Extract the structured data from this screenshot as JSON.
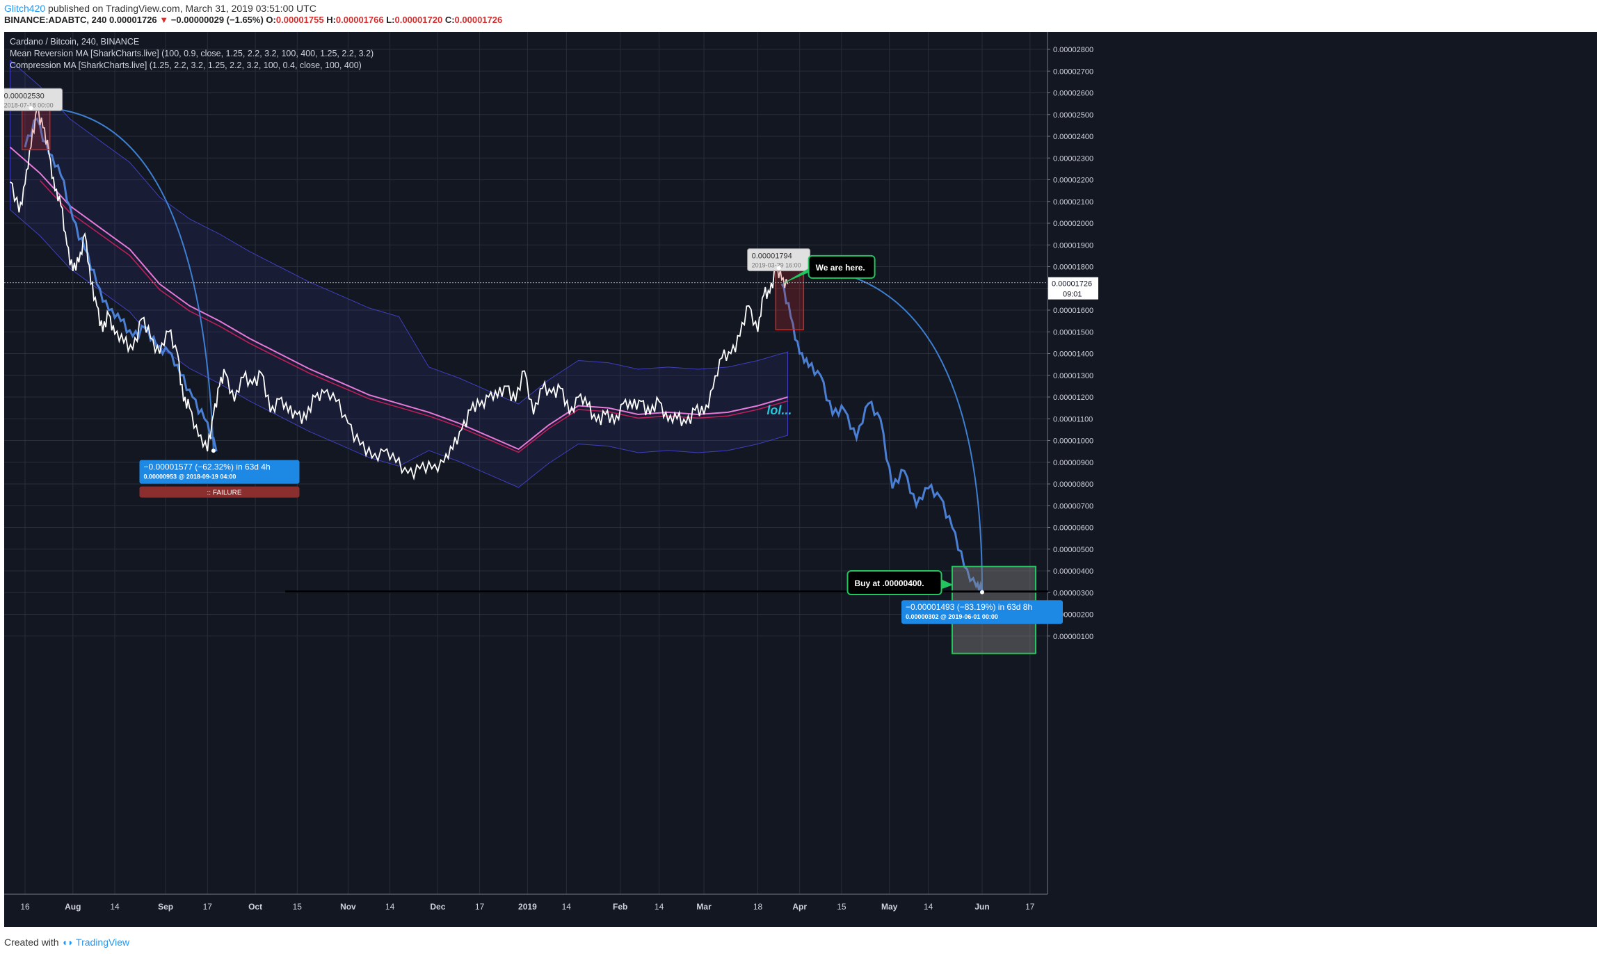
{
  "header": {
    "user": "Glitch420",
    "published": "published on TradingView.com, March 31, 2019 03:51:00 UTC",
    "symbol_line": {
      "symbol": "BINANCE:ADABTC, 240",
      "last": "0.00001726",
      "change": "−0.00000029 (−1.65%)",
      "o_label": "O:",
      "o": "0.00001755",
      "h_label": "H:",
      "h": "0.00001766",
      "l_label": "L:",
      "l": "0.00001720",
      "c_label": "C:",
      "c": "0.00001726"
    }
  },
  "legend": {
    "title": "Cardano / Bitcoin, 240, BINANCE",
    "ind1": "Mean Reversion MA [SharkCharts.live] (100, 0.9, close, 1.25, 2.2, 3.2, 100, 400, 1.25, 2.2, 3.2)",
    "ind2": "Compression MA [SharkCharts.live] (1.25, 2.2, 3.2, 1.25, 2.2, 3.2, 100, 0.4, close, 100, 400)"
  },
  "footer": {
    "created": "Created with",
    "brand": "TradingView"
  },
  "colors": {
    "background": "#131722",
    "price": "#ffffff",
    "projection": "#4a7fd4",
    "ma_pink": "#e879d9",
    "ma_red": "#e91e63",
    "band": "#3f3fbf",
    "label_blue": "#1e88e5",
    "green": "#22c55e",
    "red_box": "#c62828"
  },
  "chart_data": {
    "type": "line",
    "title": "Cardano / Bitcoin, 240, BINANCE",
    "ylim": [
      9e-07,
      2.85e-05
    ],
    "y_ticks": [
      "0.00002800",
      "0.00002700",
      "0.00002600",
      "0.00002500",
      "0.00002400",
      "0.00002300",
      "0.00002200",
      "0.00002100",
      "0.00002000",
      "0.00001900",
      "0.00001800",
      "0.00001700",
      "0.00001600",
      "0.00001500",
      "0.00001400",
      "0.00001300",
      "0.00001200",
      "0.00001100",
      "0.00001000",
      "0.00000900",
      "0.00000800",
      "0.00000700",
      "0.00000600",
      "0.00000500",
      "0.00000400",
      "0.00000300",
      "0.00000200",
      "0.00000100"
    ],
    "y_tick_values": [
      2.8e-05,
      2.7e-05,
      2.6e-05,
      2.5e-05,
      2.4e-05,
      2.3e-05,
      2.2e-05,
      2.1e-05,
      2e-05,
      1.9e-05,
      1.8e-05,
      1.7e-05,
      1.6e-05,
      1.5e-05,
      1.4e-05,
      1.3e-05,
      1.2e-05,
      1.1e-05,
      1e-05,
      9e-06,
      8e-06,
      7e-06,
      6e-06,
      5e-06,
      4e-06,
      3e-06,
      2e-06,
      1e-06
    ],
    "x_ticks": [
      "16",
      "Aug",
      "14",
      "Sep",
      "17",
      "Oct",
      "15",
      "Nov",
      "14",
      "Dec",
      "17",
      "2019",
      "14",
      "Feb",
      "14",
      "Mar",
      "18",
      "Apr",
      "15",
      "May",
      "14",
      "Jun",
      "17"
    ],
    "x_tick_days": [
      0,
      16,
      30,
      47,
      61,
      77,
      91,
      108,
      122,
      138,
      152,
      168,
      181,
      199,
      212,
      227,
      245,
      259,
      273,
      289,
      302,
      320,
      336
    ],
    "x_start": "2018-07-16",
    "x_end": "2019-07-01",
    "price_series": {
      "name": "ADABTC",
      "days": [
        -5,
        -2,
        0,
        2,
        4,
        6,
        8,
        10,
        12,
        14,
        16,
        18,
        20,
        22,
        24,
        26,
        28,
        30,
        33,
        36,
        39,
        42,
        45,
        48,
        51,
        53,
        55,
        58,
        61,
        63,
        65,
        67,
        70,
        73,
        76,
        79,
        82,
        85,
        88,
        91,
        94,
        97,
        100,
        104,
        108,
        112,
        116,
        120,
        124,
        128,
        132,
        136,
        140,
        143,
        146,
        149,
        152,
        155,
        158,
        161,
        164,
        167,
        170,
        173,
        176,
        179,
        182,
        185,
        188,
        191,
        194,
        197,
        200,
        203,
        206,
        209,
        212,
        215,
        218,
        221,
        224,
        227,
        230,
        233,
        236,
        239,
        242,
        245,
        247,
        249,
        251,
        253,
        255
      ],
      "values": [
        2.19e-05,
        2.05e-05,
        2.18e-05,
        2.35e-05,
        2.53e-05,
        2.44e-05,
        2.32e-05,
        2.15e-05,
        2.08e-05,
        1.9e-05,
        1.78e-05,
        1.82e-05,
        1.95e-05,
        1.72e-05,
        1.62e-05,
        1.5e-05,
        1.58e-05,
        1.49e-05,
        1.45e-05,
        1.42e-05,
        1.56e-05,
        1.47e-05,
        1.4e-05,
        1.5e-05,
        1.4e-05,
        1.18e-05,
        1.15e-05,
        1.02e-05,
        9.5e-06,
        1.12e-05,
        1.25e-05,
        1.31e-05,
        1.18e-05,
        1.29e-05,
        1.26e-05,
        1.31e-05,
        1.13e-05,
        1.19e-05,
        1.13e-05,
        1.12e-05,
        1.1e-05,
        1.2e-05,
        1.22e-05,
        1.18e-05,
        1.08e-05,
        9.8e-06,
        9.2e-06,
        9.5e-06,
        9e-06,
        8.5e-06,
        8.7e-06,
        8.7e-06,
        9e-06,
        9.6e-06,
        1.05e-05,
        1.14e-05,
        1.16e-05,
        1.2e-05,
        1.2e-05,
        1.25e-05,
        1.18e-05,
        1.32e-05,
        1.12e-05,
        1.24e-05,
        1.22e-05,
        1.24e-05,
        1.12e-05,
        1.2e-05,
        1.16e-05,
        1.09e-05,
        1.12e-05,
        1.08e-05,
        1.17e-05,
        1.15e-05,
        1.18e-05,
        1.12e-05,
        1.18e-05,
        1.09e-05,
        1.1e-05,
        1.08e-05,
        1.14e-05,
        1.12e-05,
        1.24e-05,
        1.38e-05,
        1.4e-05,
        1.48e-05,
        1.62e-05,
        1.5e-05,
        1.67e-05,
        1.68e-05,
        1.79e-05,
        1.74e-05,
        1.72e-05
      ]
    },
    "projection_series": {
      "name": "Projection",
      "days": [
        0,
        4,
        8,
        12,
        16,
        20,
        24,
        28,
        32,
        36,
        40,
        44,
        48,
        52,
        56,
        60,
        64,
        253,
        256,
        259,
        262,
        266,
        270,
        274,
        278,
        282,
        286,
        290,
        294,
        298,
        302,
        306,
        310,
        314,
        318,
        320
      ],
      "values": [
        2.35e-05,
        2.48e-05,
        2.32e-05,
        2.22e-05,
        2.02e-05,
        1.88e-05,
        1.72e-05,
        1.6e-05,
        1.55e-05,
        1.48e-05,
        1.52e-05,
        1.43e-05,
        1.41e-05,
        1.3e-05,
        1.2e-05,
        1.1e-05,
        9.5e-06,
        1.72e-05,
        1.57e-05,
        1.4e-05,
        1.34e-05,
        1.3e-05,
        1.12e-05,
        1.14e-05,
        1.01e-05,
        1.17e-05,
        1.1e-05,
        7.8e-06,
        8.6e-06,
        7e-06,
        7.8e-06,
        7.4e-06,
        6e-06,
        4.2e-06,
        3.3e-06,
        3.1e-06
      ]
    },
    "mean_reversion_ma": {
      "name": "Mean Reversion MA",
      "days": [
        -5,
        5,
        15,
        25,
        35,
        45,
        55,
        65,
        75,
        85,
        95,
        105,
        115,
        125,
        135,
        145,
        155,
        165,
        175,
        185,
        195,
        205,
        215,
        225,
        235,
        245,
        255
      ],
      "values": [
        2.35e-05,
        2.23e-05,
        2.08e-05,
        1.98e-05,
        1.88e-05,
        1.72e-05,
        1.62e-05,
        1.55e-05,
        1.47e-05,
        1.4e-05,
        1.33e-05,
        1.27e-05,
        1.21e-05,
        1.17e-05,
        1.13e-05,
        1.08e-05,
        1.02e-05,
        9.6e-06,
        1.07e-05,
        1.16e-05,
        1.15e-05,
        1.12e-05,
        1.13e-05,
        1.12e-05,
        1.13e-05,
        1.16e-05,
        1.2e-05
      ]
    },
    "annotations": [
      {
        "text": "0.00002530",
        "sub": "2018-07-18 00:00",
        "day": 2,
        "value": 2.53e-05
      },
      {
        "text": "0.00001794",
        "sub": "2019-03-29 16:00",
        "day": 252,
        "value": 1.794e-05
      },
      {
        "text": "−0.00001577 (−62.32%) in 63d 4h",
        "sub": "0.00000953  @ 2018-09-19  04:00",
        "day": 65,
        "value": 9.53e-06
      },
      {
        "text": "FAILURE",
        "day": 65
      },
      {
        "text": "We are here.",
        "day": 253,
        "value": 1.72e-05
      },
      {
        "text": "Buy at .00000400.",
        "day": 302,
        "value": 4e-06
      },
      {
        "text": "−0.00001493 (−83.19%) in 63d 8h",
        "sub": "0.00000302  @ 2019-06-01  00:00",
        "day": 320,
        "value": 3.02e-06
      },
      {
        "text": "lol...",
        "day": 248,
        "value": 1.13e-05
      }
    ],
    "current_price": {
      "value": 1.726e-05,
      "label": "0.00001726",
      "countdown": "09:01"
    },
    "support_line": 3.05e-06,
    "grid": true
  }
}
